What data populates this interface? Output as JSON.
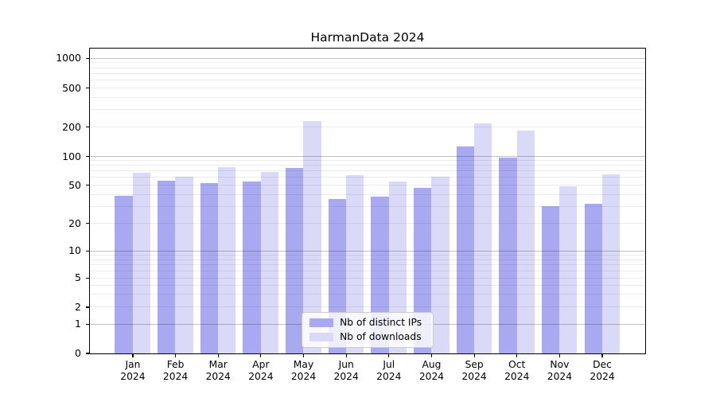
{
  "chart_data": {
    "type": "bar",
    "title": "HarmanData 2024",
    "categories": [
      "Jan",
      "Feb",
      "Mar",
      "Apr",
      "May",
      "Jun",
      "Jul",
      "Aug",
      "Sep",
      "Oct",
      "Nov",
      "Dec"
    ],
    "year_label": "2024",
    "series": [
      {
        "name": "Nb of distinct IPs",
        "color": "#a9a9f1",
        "values": [
          39,
          56,
          52,
          55,
          76,
          36,
          38,
          47,
          125,
          97,
          30,
          32
        ]
      },
      {
        "name": "Nb of downloads",
        "color": "#dadaf8",
        "values": [
          67,
          61,
          77,
          69,
          230,
          64,
          55,
          61,
          218,
          185,
          49,
          65
        ]
      }
    ],
    "xlabel": "",
    "ylabel": "",
    "y_ticks": [
      0,
      1,
      2,
      5,
      10,
      20,
      50,
      100,
      200,
      500,
      1000
    ],
    "y_scale": "symlog",
    "ylim": [
      0,
      1300
    ],
    "grid": "horizontal major+minor, drawn over bars",
    "legend_position": "inside-bottom-center"
  },
  "colors": {
    "background": "#ffffff",
    "spine": "#000000",
    "major_grid": "#c2c2c2",
    "minor_grid": "#ececec",
    "legend_border": "#cccccc",
    "legend_background": "rgba(255,255,255,0.8)"
  }
}
